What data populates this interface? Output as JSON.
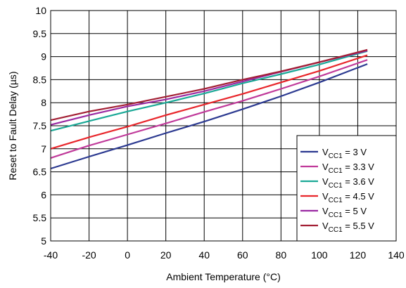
{
  "chart_data": {
    "type": "line",
    "xlabel": "Ambient Temperature (°C)",
    "ylabel": "Reset to Fault Delay (µs)",
    "xlim": [
      -40,
      140
    ],
    "ylim": [
      5,
      10
    ],
    "x_ticks": [
      -40,
      -20,
      0,
      20,
      40,
      60,
      80,
      100,
      120,
      140
    ],
    "y_ticks": [
      5,
      5.5,
      6,
      6.5,
      7,
      7.5,
      8,
      8.5,
      9,
      9.5,
      10
    ],
    "x_tick_labels": [
      "-40",
      "-20",
      "0",
      "20",
      "40",
      "60",
      "80",
      "100",
      "120",
      "140"
    ],
    "y_tick_labels": [
      "5",
      "5.5",
      "6",
      "6.5",
      "7",
      "7.5",
      "8",
      "8.5",
      "9",
      "9.5",
      "10"
    ],
    "grid": true,
    "legend_position": "bottom-right",
    "x": [
      -40,
      -20,
      0,
      20,
      40,
      60,
      80,
      100,
      125
    ],
    "series": [
      {
        "label_main": "V",
        "label_sub": "CC1",
        "label_value": " = 3 V",
        "color": "#2b3990",
        "values": [
          6.57,
          6.83,
          7.08,
          7.34,
          7.59,
          7.86,
          8.14,
          8.44,
          8.84
        ]
      },
      {
        "label_main": "V",
        "label_sub": "CC1",
        "label_value": " = 3.3 V",
        "color": "#c03a9a",
        "values": [
          6.8,
          7.07,
          7.31,
          7.55,
          7.8,
          8.04,
          8.3,
          8.57,
          8.93
        ]
      },
      {
        "label_main": "V",
        "label_sub": "CC1",
        "label_value": " = 3.6 V",
        "color": "#1aa896",
        "values": [
          7.39,
          7.6,
          7.81,
          8.0,
          8.2,
          8.42,
          8.62,
          8.83,
          9.12
        ]
      },
      {
        "label_main": "V",
        "label_sub": "CC1",
        "label_value": " = 4.5 V",
        "color": "#e8262b",
        "values": [
          7.0,
          7.25,
          7.48,
          7.73,
          7.96,
          8.19,
          8.44,
          8.69,
          9.03
        ]
      },
      {
        "label_main": "V",
        "label_sub": "CC1",
        "label_value": " = 5 V",
        "color": "#9b2aa2",
        "values": [
          7.52,
          7.73,
          7.92,
          8.07,
          8.25,
          8.46,
          8.67,
          8.88,
          9.13
        ]
      },
      {
        "label_main": "V",
        "label_sub": "CC1",
        "label_value": " = 5.5 V",
        "color": "#a32035",
        "values": [
          7.62,
          7.81,
          7.96,
          8.13,
          8.3,
          8.5,
          8.68,
          8.88,
          9.15
        ]
      }
    ]
  }
}
